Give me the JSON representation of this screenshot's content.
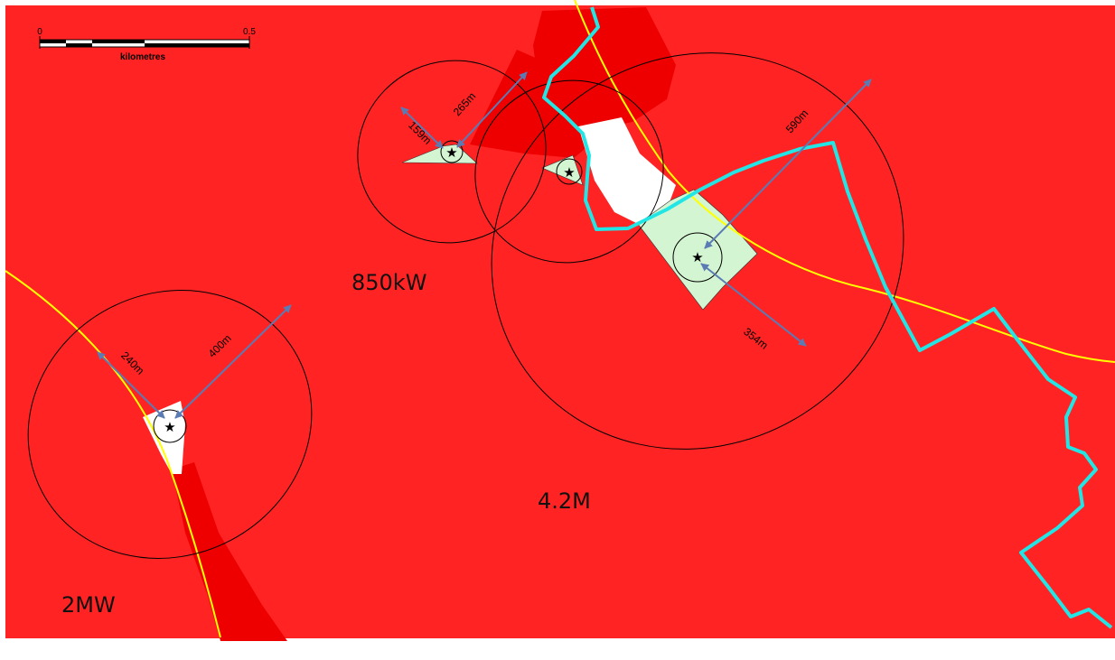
{
  "map": {
    "colors": {
      "background": "#ff2323",
      "dark_zone": "#ee0000",
      "clear_zone": "#ffffff",
      "site_fill": "#d4f5d2",
      "yellow_line": "#ffff00",
      "cyan_boundary": "#22e5e5",
      "arrow": "#5b7bb5",
      "ellipse": "#000000"
    },
    "scale_bar": {
      "start_label": "0",
      "end_label": "0.5",
      "unit_label": "kilometres"
    },
    "turbine_labels": {
      "t850": "850kW",
      "t42": "4.2M",
      "t2mw": "2MW"
    },
    "distances": {
      "d159": "159m",
      "d265": "265m",
      "d590": "590m",
      "d354": "354m",
      "d240": "240m",
      "d400": "400m"
    },
    "icons": [
      "star-icon",
      "arrow-icon",
      "scale-bar"
    ]
  }
}
